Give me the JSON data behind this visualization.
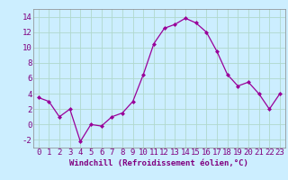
{
  "x": [
    0,
    1,
    2,
    3,
    4,
    5,
    6,
    7,
    8,
    9,
    10,
    11,
    12,
    13,
    14,
    15,
    16,
    17,
    18,
    19,
    20,
    21,
    22,
    23
  ],
  "y": [
    3.5,
    3.0,
    1.0,
    2.0,
    -2.2,
    0.0,
    -0.2,
    1.0,
    1.5,
    3.0,
    6.5,
    10.5,
    12.5,
    13.0,
    13.8,
    13.2,
    12.0,
    9.5,
    6.5,
    5.0,
    5.5,
    4.0,
    2.0,
    4.0
  ],
  "line_color": "#990099",
  "marker": "D",
  "marker_size": 2,
  "bg_color": "#cceeff",
  "grid_color": "#aaddcc",
  "xlabel": "Windchill (Refroidissement éolien,°C)",
  "xlabel_color": "#800080",
  "tick_color": "#800080",
  "ylim": [
    -3,
    15
  ],
  "yticks": [
    -2,
    0,
    2,
    4,
    6,
    8,
    10,
    12,
    14
  ],
  "xticks": [
    0,
    1,
    2,
    3,
    4,
    5,
    6,
    7,
    8,
    9,
    10,
    11,
    12,
    13,
    14,
    15,
    16,
    17,
    18,
    19,
    20,
    21,
    22,
    23
  ],
  "xtick_labels": [
    "0",
    "1",
    "2",
    "3",
    "4",
    "5",
    "6",
    "7",
    "8",
    "9",
    "10",
    "11",
    "12",
    "13",
    "14",
    "15",
    "16",
    "17",
    "18",
    "19",
    "20",
    "21",
    "22",
    "23"
  ],
  "xlabel_fontsize": 6.5,
  "tick_fontsize": 6.5
}
